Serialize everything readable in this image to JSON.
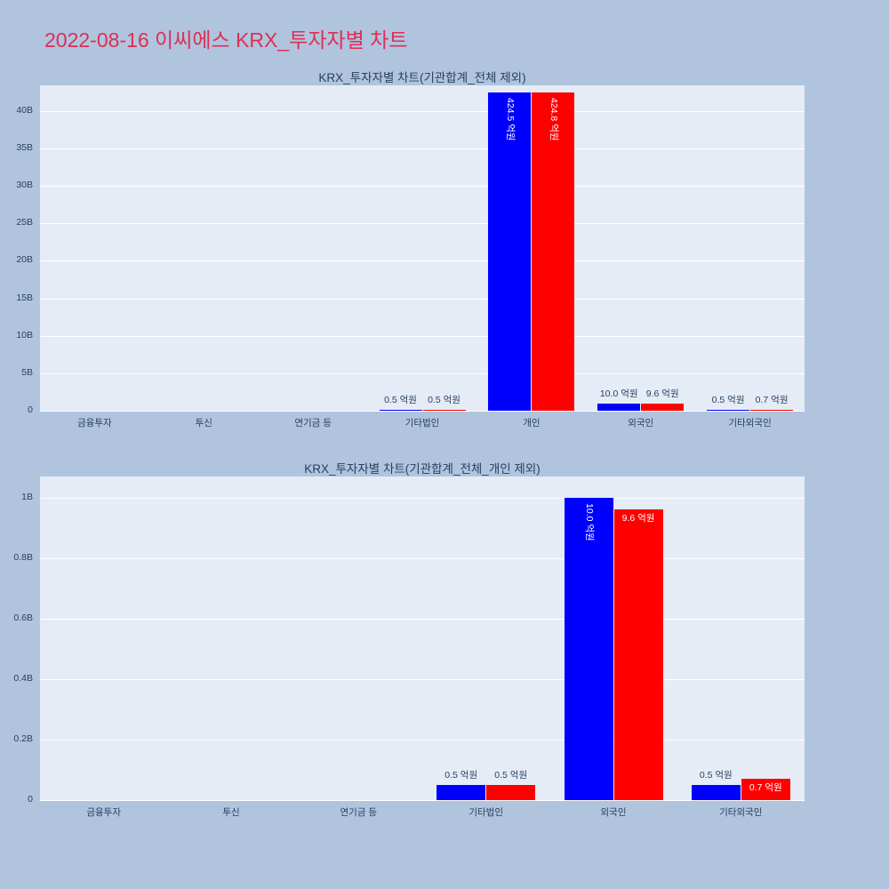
{
  "page": {
    "title": "2022-08-16 이씨에스 KRX_투자자별 차트"
  },
  "colors": {
    "page_background": "#b0c4de",
    "plot_background": "#e5ecf6",
    "page_title": "#dc2f55",
    "axis_text": "#2a3f5f",
    "grid": "#ffffff",
    "bar_blue": "#0000ff",
    "bar_red": "#ff0000",
    "inside_label": "#ffffff"
  },
  "chart_data": [
    {
      "type": "bar",
      "title": "KRX_투자자별 차트(기관합계_전체 제외)",
      "value_unit": "억원",
      "axis_unit": "B",
      "unit_to_axis_scale": 0.1,
      "categories": [
        "금융투자",
        "투신",
        "연기금 등",
        "기타법인",
        "개인",
        "외국인",
        "기타외국인"
      ],
      "series": [
        {
          "name": "blue",
          "color_key": "bar_blue",
          "values": [
            null,
            null,
            null,
            0.5,
            424.5,
            10.0,
            0.5
          ],
          "labels": [
            "",
            "",
            "",
            "0.5 억원",
            "424.5 억원",
            "10.0 억원",
            "0.5 억원"
          ],
          "label_styles": [
            "none",
            "none",
            "none",
            "outside",
            "inside-vertical",
            "outside",
            "outside"
          ]
        },
        {
          "name": "red",
          "color_key": "bar_red",
          "values": [
            null,
            null,
            null,
            0.5,
            424.8,
            9.6,
            0.7
          ],
          "labels": [
            "",
            "",
            "",
            "0.5 억원",
            "424.8 억원",
            "9.6 억원",
            "0.7 억원"
          ],
          "label_styles": [
            "none",
            "none",
            "none",
            "outside",
            "inside-vertical",
            "outside",
            "outside"
          ]
        }
      ],
      "ylim_axis_units": [
        0,
        43.4
      ],
      "yticks": [
        {
          "v": 0,
          "label": "0"
        },
        {
          "v": 5,
          "label": "5B"
        },
        {
          "v": 10,
          "label": "10B"
        },
        {
          "v": 15,
          "label": "15B"
        },
        {
          "v": 20,
          "label": "20B"
        },
        {
          "v": 25,
          "label": "25B"
        },
        {
          "v": 30,
          "label": "30B"
        },
        {
          "v": 35,
          "label": "35B"
        },
        {
          "v": 40,
          "label": "40B"
        }
      ],
      "grid": true,
      "legend": false
    },
    {
      "type": "bar",
      "title": "KRX_투자자별 차트(기관합계_전체_개인 제외)",
      "value_unit": "억원",
      "axis_unit": "B",
      "unit_to_axis_scale": 0.1,
      "categories": [
        "금융투자",
        "투신",
        "연기금 등",
        "기타법인",
        "외국인",
        "기타외국인"
      ],
      "series": [
        {
          "name": "blue",
          "color_key": "bar_blue",
          "values": [
            null,
            null,
            null,
            0.5,
            10.0,
            0.5
          ],
          "labels": [
            "",
            "",
            "",
            "0.5 억원",
            "10.0 억원",
            "0.5 억원"
          ],
          "label_styles": [
            "none",
            "none",
            "none",
            "outside",
            "inside-vertical",
            "outside"
          ]
        },
        {
          "name": "red",
          "color_key": "bar_red",
          "values": [
            null,
            null,
            null,
            0.5,
            9.6,
            0.7
          ],
          "labels": [
            "",
            "",
            "",
            "0.5 억원",
            "9.6 억원",
            "0.7 억원"
          ],
          "label_styles": [
            "none",
            "none",
            "none",
            "outside",
            "inside-horizontal",
            "inside-horizontal"
          ]
        }
      ],
      "ylim_axis_units": [
        0,
        1.07
      ],
      "yticks": [
        {
          "v": 0,
          "label": "0"
        },
        {
          "v": 0.2,
          "label": "0.2B"
        },
        {
          "v": 0.4,
          "label": "0.4B"
        },
        {
          "v": 0.6,
          "label": "0.6B"
        },
        {
          "v": 0.8,
          "label": "0.8B"
        },
        {
          "v": 1.0,
          "label": "1B"
        }
      ],
      "grid": true,
      "legend": false
    }
  ]
}
